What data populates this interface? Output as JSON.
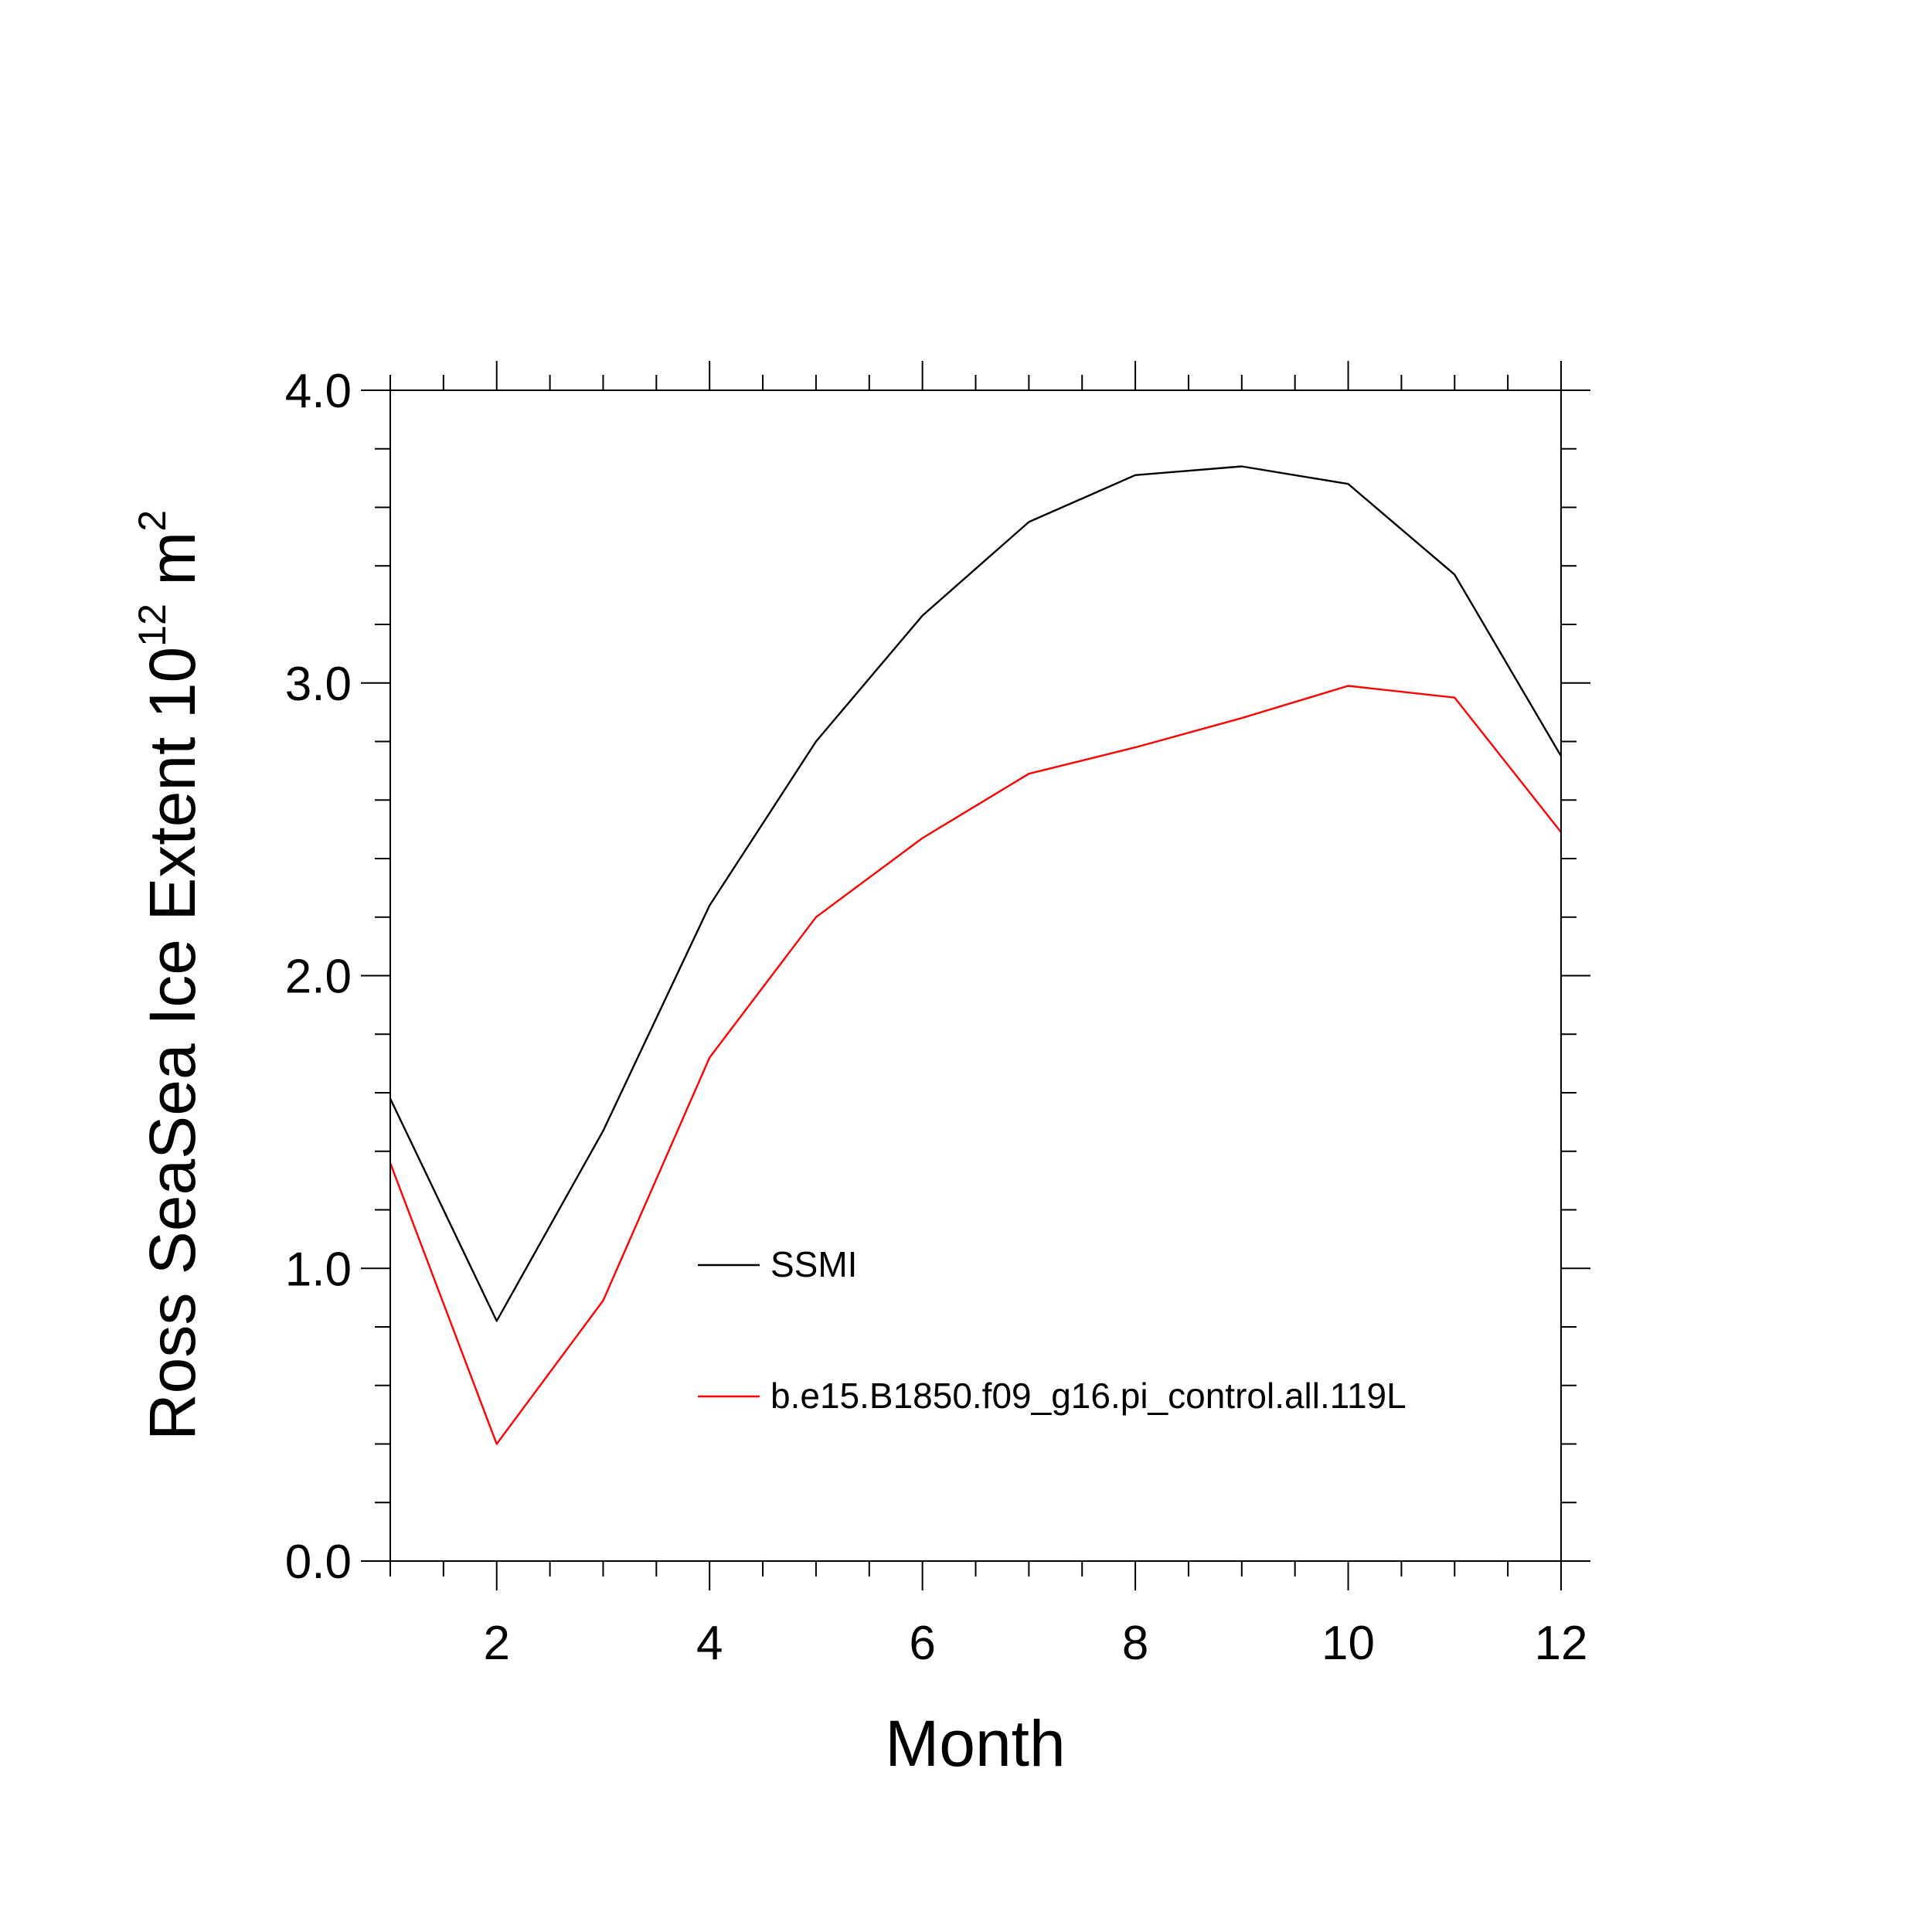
{
  "chart_data": {
    "type": "line",
    "title": "",
    "xlabel": "Month",
    "ylabel_main": "Ross SeaSea Ice Extent 10",
    "ylabel_exponent": "12",
    "ylabel_unit": " m",
    "ylabel_unit_exponent": "2",
    "xlim": [
      1,
      12
    ],
    "ylim": [
      0,
      4
    ],
    "x_ticks": [
      2,
      4,
      6,
      8,
      10,
      12
    ],
    "x_tick_labels": [
      "2",
      "4",
      "6",
      "8",
      "10",
      "12"
    ],
    "y_ticks": [
      0,
      1,
      2,
      3,
      4
    ],
    "y_tick_labels": [
      "0.0",
      "1.0",
      "2.0",
      "3.0",
      "4.0"
    ],
    "x": [
      1,
      2,
      3,
      4,
      5,
      6,
      7,
      8,
      9,
      10,
      11,
      12
    ],
    "series": [
      {
        "name": "SSMI",
        "color": "#000000",
        "values": [
          1.58,
          0.82,
          1.47,
          2.24,
          2.8,
          3.23,
          3.55,
          3.71,
          3.74,
          3.68,
          3.37,
          2.75
        ]
      },
      {
        "name": "b.e15.B1850.f09_g16.pi_control.all.119L",
        "color": "#ff0000",
        "values": [
          1.36,
          0.4,
          0.89,
          1.72,
          2.2,
          2.47,
          2.69,
          2.78,
          2.88,
          2.99,
          2.95,
          2.49
        ]
      }
    ],
    "grid": false,
    "legend_placement": "inside-center"
  }
}
